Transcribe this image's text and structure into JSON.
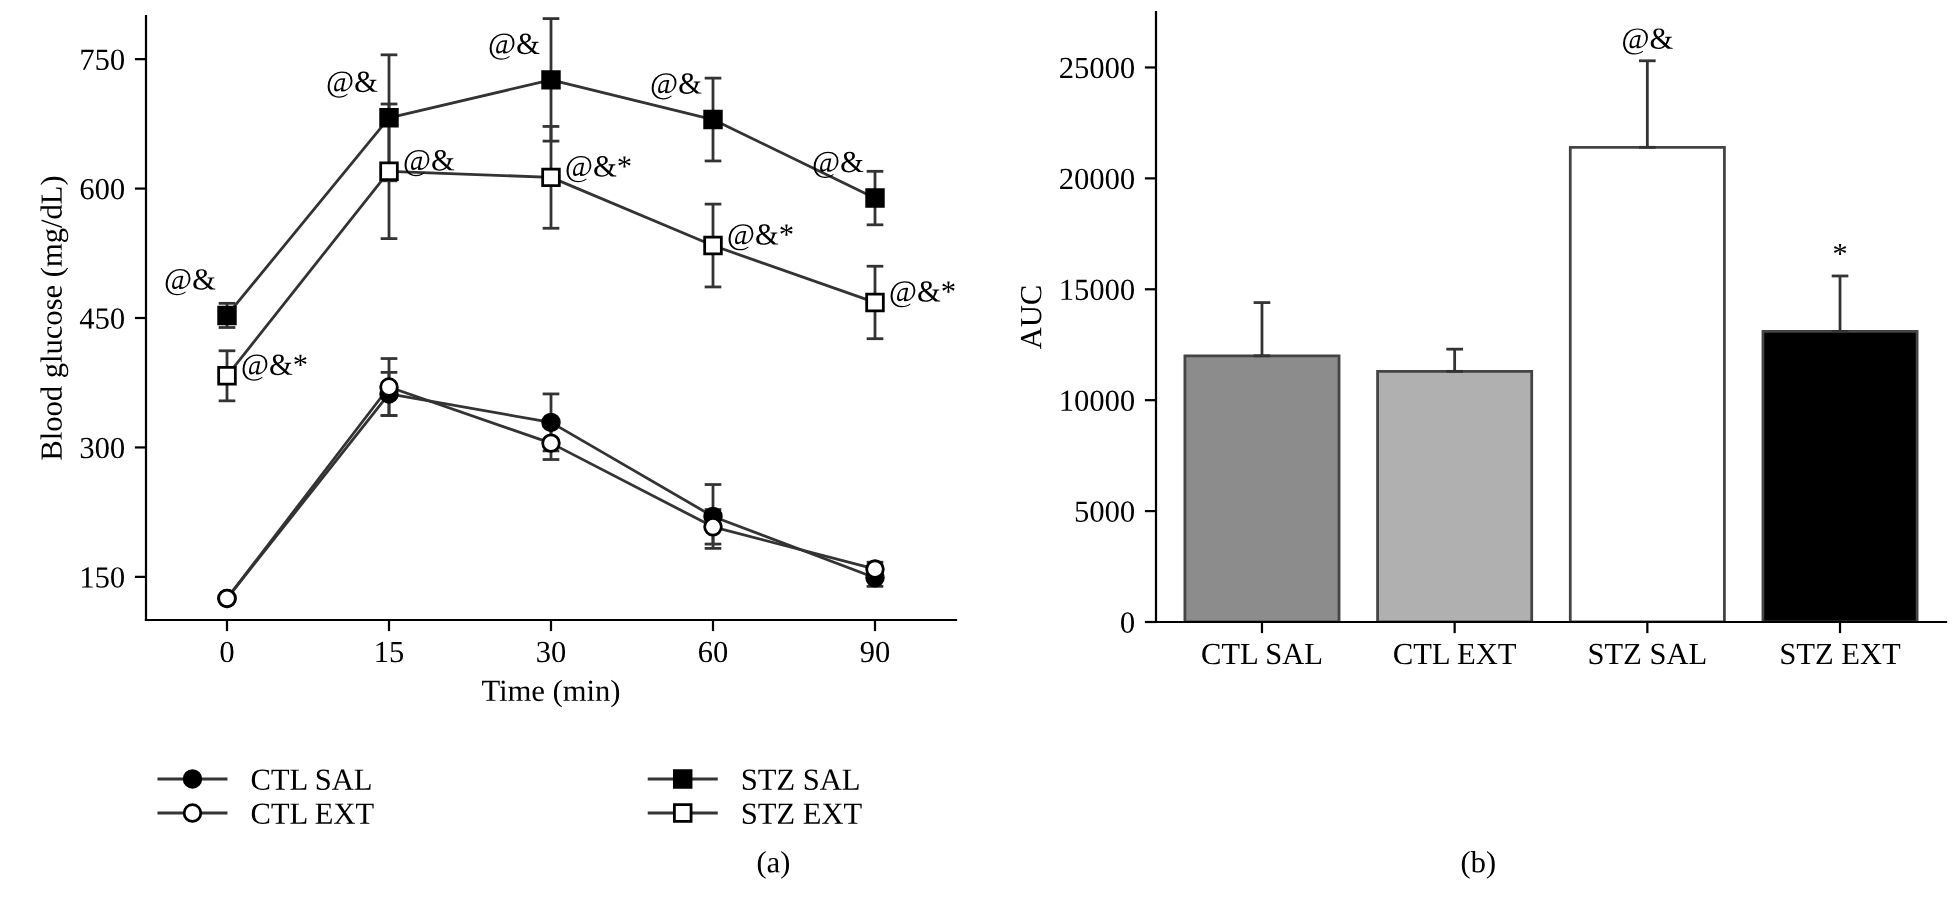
{
  "chart_data": [
    {
      "type": "line",
      "xlabel": "Time (min)",
      "ylabel": "Blood glucose (mg/dL)",
      "categories": [
        "0",
        "15",
        "30",
        "60",
        "90"
      ],
      "ylim": [
        100,
        800
      ],
      "yticks": [
        150,
        300,
        450,
        600,
        750
      ],
      "grid": false,
      "legend": "bottom",
      "line_style": "solid",
      "series": [
        {
          "name": "CTL SAL",
          "color": "#000000",
          "marker": "circle",
          "values": [
            125,
            362,
            329,
            220,
            149
          ],
          "errors": [
            null,
            25,
            33,
            37,
            10
          ]
        },
        {
          "name": "CTL EXT",
          "color": "#ffffff",
          "marker": "circle",
          "values": [
            125,
            370,
            305,
            208,
            159
          ],
          "errors": [
            null,
            33,
            19,
            20,
            8
          ]
        },
        {
          "name": "STZ SAL",
          "color": "#000000",
          "marker": "square",
          "values": [
            453,
            682,
            726,
            680,
            589
          ],
          "errors": [
            14,
            73,
            71,
            48,
            31
          ]
        },
        {
          "name": "STZ EXT",
          "color": "#ffffff",
          "marker": "square",
          "values": [
            383,
            620,
            613,
            534,
            468
          ],
          "errors": [
            29,
            78,
            59,
            48,
            42
          ]
        }
      ],
      "annotations": [
        {
          "text": "@&",
          "x": "0",
          "y": 453
        },
        {
          "text": "@&",
          "x": "15",
          "y": 682
        },
        {
          "text": "@&",
          "x": "30",
          "y": 726
        },
        {
          "text": "@&",
          "x": "60",
          "y": 680
        },
        {
          "text": "@&",
          "x": "90",
          "y": 589
        },
        {
          "text": "@&*",
          "x": "0",
          "y": 383
        },
        {
          "text": "@&",
          "x": "15",
          "y": 620
        },
        {
          "text": "@&*",
          "x": "30",
          "y": 613
        },
        {
          "text": "@&*",
          "x": "60",
          "y": 534
        },
        {
          "text": "@&*",
          "x": "90",
          "y": 468
        },
        "(a)"
      ]
    },
    {
      "type": "bar",
      "ylabel": "AUC",
      "categories": [
        "CTL SAL",
        "CTL EXT",
        "STZ SAL",
        "STZ EXT"
      ],
      "values": [
        12000,
        11300,
        21400,
        13100
      ],
      "errors": [
        2400,
        1000,
        3900,
        2500
      ],
      "colors": [
        "#8c8c8c",
        "#b0b0b0",
        "#ffffff",
        "#000000"
      ],
      "ylim": [
        0,
        27500
      ],
      "yticks": [
        0,
        5000,
        10000,
        15000,
        20000,
        25000
      ],
      "grid": false,
      "annotations": [
        {
          "text": "@&",
          "x": "STZ SAL",
          "y": 25300
        },
        {
          "text": "*",
          "x": "STZ EXT",
          "y": 15600
        },
        "(b)"
      ]
    }
  ]
}
